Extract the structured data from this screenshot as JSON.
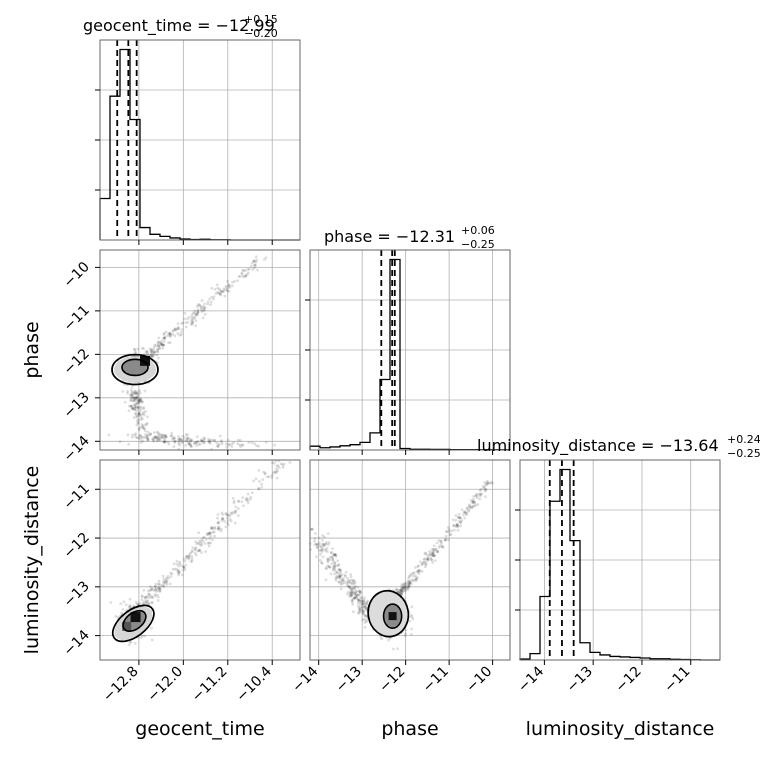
{
  "chart_data": {
    "type": "corner",
    "parameters": [
      "geocent_time",
      "phase",
      "luminosity_distance"
    ],
    "titles": [
      {
        "label": "geocent_time",
        "median": "−12.99",
        "plus": "+0.15",
        "minus": "−0.20"
      },
      {
        "label": "phase",
        "median": "−12.31",
        "plus": "+0.06",
        "minus": "−0.25"
      },
      {
        "label": "luminosity_distance",
        "median": "−13.64",
        "plus": "+0.24",
        "minus": "−0.25"
      }
    ],
    "axis_labels": {
      "x": [
        "geocent_time",
        "phase",
        "luminosity_distance"
      ],
      "y": [
        "phase",
        "luminosity_distance"
      ]
    },
    "ranges": {
      "geocent_time": [
        -13.5,
        -9.9
      ],
      "phase": [
        -14.2,
        -9.6
      ],
      "luminosity_distance": [
        -14.5,
        -10.4
      ]
    },
    "ticks": {
      "geocent_time": [
        -12.8,
        -12.0,
        -11.2,
        -10.4
      ],
      "phase": [
        -14,
        -13,
        -12,
        -11,
        -10
      ],
      "luminosity_distance": [
        -14,
        -13,
        -12,
        -11
      ]
    },
    "tick_labels": {
      "geocent_time": [
        "−12.8",
        "−12.0",
        "−11.2",
        "−10.4"
      ],
      "phase": [
        "−14",
        "−13",
        "−12",
        "−11",
        "−10"
      ],
      "luminosity_distance": [
        "−14",
        "−13",
        "−12",
        "−11"
      ]
    },
    "quantiles": {
      "geocent_time": [
        -13.19,
        -12.99,
        -12.84
      ],
      "phase": [
        -12.56,
        -12.31,
        -12.25
      ],
      "luminosity_distance": [
        -13.89,
        -13.64,
        -13.4
      ]
    },
    "histograms": {
      "geocent_time": {
        "bins": [
          -13.5,
          -13.32,
          -13.14,
          -12.96,
          -12.78,
          -12.6,
          -12.42,
          -12.24,
          -12.06,
          -11.88,
          -11.7,
          -11.52,
          -11.34,
          -11.16,
          -10.98,
          -10.8,
          -10.62,
          -10.44,
          -10.26,
          -10.08,
          -9.9
        ],
        "counts": [
          160,
          555,
          735,
          465,
          48,
          22,
          14,
          8,
          4,
          2,
          3,
          1,
          1,
          0,
          0,
          0,
          0,
          0,
          0,
          0
        ]
      },
      "phase": {
        "bins": [
          -14.2,
          -13.97,
          -13.74,
          -13.51,
          -13.28,
          -13.05,
          -12.82,
          -12.59,
          -12.36,
          -12.13,
          -11.9,
          -11.67,
          -11.44,
          -11.21,
          -10.98,
          -10.75,
          -10.52,
          -10.29,
          -10.06,
          -9.83,
          -9.6
        ],
        "counts": [
          20,
          12,
          16,
          22,
          28,
          40,
          90,
          370,
          1000,
          8,
          4,
          4,
          3,
          3,
          2,
          2,
          2,
          1,
          1,
          1
        ]
      },
      "luminosity_distance": {
        "bins": [
          -14.5,
          -14.295,
          -14.09,
          -13.885,
          -13.68,
          -13.475,
          -13.27,
          -13.065,
          -12.86,
          -12.655,
          -12.45,
          -12.245,
          -12.04,
          -11.835,
          -11.63,
          -11.425,
          -11.22,
          -11.015,
          -10.81,
          -10.605,
          -10.4
        ],
        "counts": [
          4,
          25,
          250,
          625,
          750,
          470,
          68,
          30,
          20,
          14,
          12,
          10,
          8,
          5,
          5,
          3,
          2,
          1,
          0,
          0
        ]
      }
    },
    "scatter_branches": {
      "geocent_time_vs_phase": {
        "center": [
          -12.85,
          -12.3
        ],
        "branch_up": {
          "from": [
            -12.8,
            -12.2
          ],
          "to": [
            -10.6,
            -9.8
          ]
        },
        "branch_down": {
          "from": [
            -12.9,
            -12.9
          ],
          "to": [
            -11.0,
            -14.1
          ]
        }
      },
      "geocent_time_vs_luminosity_distance": {
        "center": [
          -12.9,
          -13.7
        ],
        "branch_up": {
          "from": [
            -12.85,
            -13.5
          ],
          "to": [
            -10.1,
            -10.3
          ]
        }
      },
      "phase_vs_luminosity_distance": {
        "center": [
          -12.3,
          -13.6
        ],
        "branch_right": {
          "from": [
            -12.2,
            -13.2
          ],
          "to": [
            -10.0,
            -10.8
          ]
        },
        "branch_left": {
          "from": [
            -12.8,
            -13.6
          ],
          "to": [
            -14.1,
            -12.0
          ]
        }
      }
    },
    "grid": true
  }
}
